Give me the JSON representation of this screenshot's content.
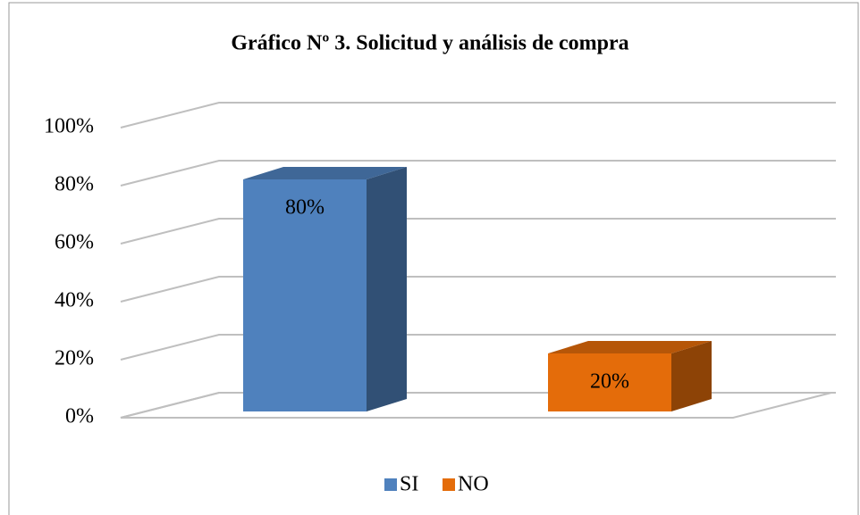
{
  "chart_data": {
    "type": "bar3d",
    "title": "Gráfico Nº 3. Solicitud y análisis de compra",
    "categories": [
      null
    ],
    "series": [
      {
        "name": "SI",
        "color": "#4f81bd",
        "values": [
          80
        ],
        "value_labels": [
          "80%"
        ]
      },
      {
        "name": "NO",
        "color": "#e46c0a",
        "values": [
          20
        ],
        "value_labels": [
          "20%"
        ]
      }
    ],
    "ylim": [
      0,
      100
    ],
    "yticks": [
      {
        "value": 0,
        "label": "0%"
      },
      {
        "value": 20,
        "label": "20%"
      },
      {
        "value": 40,
        "label": "40%"
      },
      {
        "value": 60,
        "label": "60%"
      },
      {
        "value": 80,
        "label": "80%"
      },
      {
        "value": 100,
        "label": "100%"
      }
    ],
    "grid": true,
    "legend": "bottom"
  }
}
